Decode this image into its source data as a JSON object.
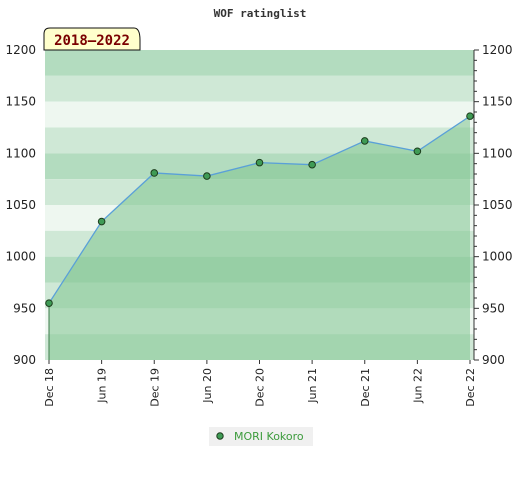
{
  "chart_data": {
    "type": "area",
    "title": "WOF ratinglist",
    "badge": "2018–2022",
    "ylim": [
      900,
      1200
    ],
    "y_ticks": [
      900,
      950,
      1000,
      1050,
      1100,
      1150,
      1200
    ],
    "x_ticks": [
      "Dec 18",
      "Jun 19",
      "Dec 19",
      "Jun 20",
      "Dec 20",
      "Jun 21",
      "Dec 21",
      "Jun 22",
      "Dec 22"
    ],
    "series": [
      {
        "name": "MORI Kokoro",
        "x": [
          "Dec 18",
          "Jun 19",
          "Dec 19",
          "Jun 20",
          "Dec 20",
          "Jun 21",
          "Dec 21",
          "Jun 22",
          "Dec 22"
        ],
        "values": [
          955,
          1034,
          1081,
          1078,
          1091,
          1089,
          1112,
          1102,
          1136
        ]
      }
    ],
    "legend_position": "bottom-center",
    "grid": true,
    "colors": {
      "line": "#5aa0d8",
      "fill": "#7fc48f",
      "marker": "#3f9b55",
      "band_light": "#eef7f0",
      "band_mid": "#cfe8d6",
      "band_dark": "#b3dcbf",
      "badge_bg": "#ffffcc",
      "legend_text": "#3c9b3c"
    }
  }
}
